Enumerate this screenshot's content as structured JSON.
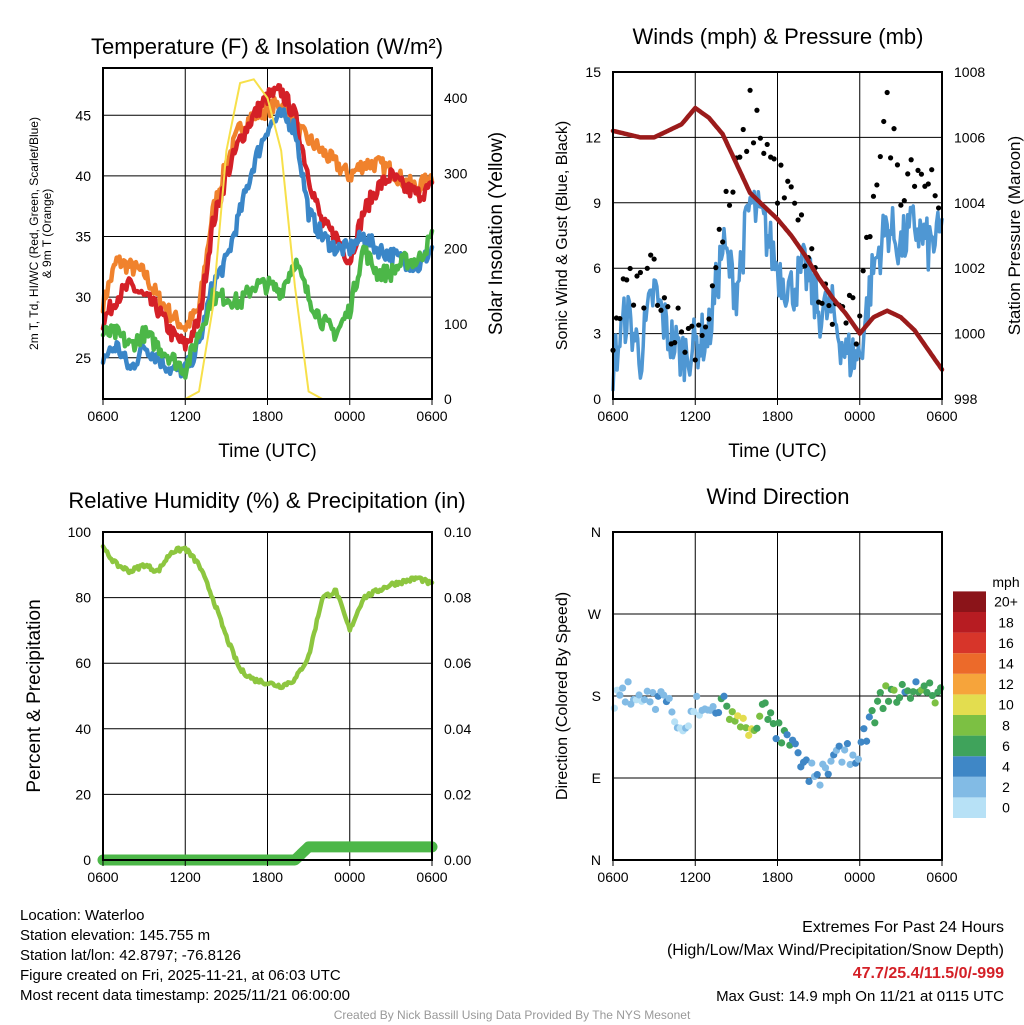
{
  "chart_data": [
    {
      "type": "line",
      "title": "Temperature (F) & Insolation (W/m²)",
      "xlabel": "Time (UTC)",
      "ylabel": "2m T, Td, HI/WC (Red, Green, Scarlet/Blue) & 9m T (Orange)",
      "ylabel2": "Solar Insolation (Yellow)",
      "ylim": [
        21.6,
        48.9
      ],
      "y2lim": [
        0,
        440
      ],
      "yticks": [
        25,
        30,
        35,
        40,
        45
      ],
      "y2ticks": [
        0,
        100,
        200,
        300,
        400
      ],
      "x_hours": [
        6,
        7,
        8,
        9,
        10,
        11,
        12,
        13,
        14,
        15,
        16,
        17,
        18,
        19,
        20,
        21,
        22,
        23,
        24,
        25,
        26,
        27,
        28,
        29,
        30
      ],
      "xticklabels": [
        "0600",
        "1200",
        "1800",
        "0000",
        "0600"
      ],
      "series": [
        {
          "name": "9m T",
          "color": "#f0822d",
          "values": [
            29.5,
            33,
            32.5,
            32,
            30,
            28.5,
            27.5,
            29,
            37,
            41,
            44,
            45,
            45.5,
            46,
            44,
            43,
            42,
            41,
            40,
            41,
            41,
            40.5,
            39.5,
            39,
            40
          ]
        },
        {
          "name": "2m T",
          "color": "#d42027",
          "values": [
            28,
            30,
            31,
            30,
            29,
            27,
            26,
            28,
            36,
            40,
            43,
            45,
            46.5,
            47,
            45,
            40,
            36,
            35,
            33,
            37,
            39,
            40,
            39,
            38.5,
            39
          ]
        },
        {
          "name": "HI/WC",
          "color": "#3a86c8",
          "values": [
            25,
            26,
            24,
            26,
            25,
            24,
            24,
            26,
            31,
            33,
            37,
            41,
            44,
            45,
            44,
            37,
            35,
            34,
            34,
            35,
            34,
            33.5,
            33,
            32.5,
            34
          ]
        },
        {
          "name": "Td",
          "color": "#4cb748",
          "values": [
            27,
            27,
            26,
            27,
            26,
            25,
            24,
            27,
            30,
            30,
            29.5,
            31,
            31,
            30.5,
            33,
            30,
            28,
            27,
            29,
            34,
            32,
            32,
            33,
            33,
            35
          ]
        },
        {
          "name": "Solar",
          "color": "#f7e04a",
          "axis": "right",
          "values": [
            0,
            0,
            0,
            0,
            0,
            0,
            0,
            10,
            120,
            330,
            420,
            425,
            400,
            330,
            150,
            10,
            0,
            0,
            0,
            0,
            0,
            0,
            0,
            0,
            0
          ]
        }
      ]
    },
    {
      "type": "line",
      "title": "Winds (mph) & Pressure (mb)",
      "xlabel": "Time (UTC)",
      "ylabel": "Sonic Wind & Gust (Blue, Black)",
      "ylabel2": "Station Pressure (Maroon)",
      "ylim": [
        0,
        15
      ],
      "y2lim": [
        998,
        1008
      ],
      "yticks": [
        0,
        3,
        6,
        9,
        12,
        15
      ],
      "y2ticks": [
        998,
        1000,
        1002,
        1004,
        1006,
        1008
      ],
      "xticklabels": [
        "0600",
        "1200",
        "1800",
        "0000",
        "0600"
      ],
      "series": [
        {
          "name": "Sonic Wind",
          "color": "#4f97d3",
          "values": [
            1.5,
            4,
            2,
            5,
            3,
            2,
            2.5,
            3,
            7,
            5,
            9,
            8,
            6,
            5,
            6,
            4,
            4,
            2,
            2,
            6,
            8,
            7,
            8,
            7,
            7.5
          ]
        },
        {
          "name": "Gust",
          "color": "#000000",
          "values": [
            3,
            5,
            5,
            6,
            4,
            3,
            3,
            4,
            8,
            10,
            13,
            12,
            10,
            9,
            7,
            5,
            4,
            4,
            3,
            10,
            13,
            10,
            11,
            10,
            10
          ]
        },
        {
          "name": "Pressure",
          "color": "#9b1b1b",
          "axis": "right",
          "values": [
            1006.2,
            1006.1,
            1006,
            1006,
            1006.2,
            1006.4,
            1006.9,
            1006.6,
            1006.1,
            1005.2,
            1004.3,
            1003.9,
            1003.5,
            1003,
            1002.4,
            1001.7,
            1001.1,
            1000.6,
            1000,
            1000.5,
            1000.7,
            1000.5,
            1000.1,
            999.5,
            998.9
          ]
        }
      ]
    },
    {
      "type": "line",
      "title": "Relative Humidity (%) & Precipitation (in)",
      "ylabel": "Percent & Precipitation",
      "ylim": [
        0,
        100
      ],
      "y2lim": [
        0,
        0.1
      ],
      "yticks": [
        0,
        20,
        40,
        60,
        80,
        100
      ],
      "y2ticks": [
        "0.00",
        "0.02",
        "0.04",
        "0.06",
        "0.08",
        "0.10"
      ],
      "xticklabels": [
        "0600",
        "1200",
        "1800",
        "0000",
        "0600"
      ],
      "series": [
        {
          "name": "RH",
          "color": "#8dc63f",
          "values": [
            95,
            90,
            88,
            90,
            88,
            94,
            95,
            90,
            80,
            68,
            58,
            55,
            54,
            53,
            55,
            62,
            80,
            82,
            70,
            80,
            82,
            84,
            85,
            86,
            84
          ]
        },
        {
          "name": "Precipitation",
          "color": "#4cb748",
          "axis": "right",
          "values": [
            0,
            0,
            0,
            0,
            0,
            0,
            0,
            0,
            0,
            0,
            0,
            0,
            0,
            0,
            0,
            0.004,
            0.004,
            0.004,
            0.004,
            0.004,
            0.004,
            0.004,
            0.004,
            0.004,
            0.004
          ]
        }
      ]
    },
    {
      "type": "scatter",
      "title": "Wind Direction",
      "ylabel": "Direction (Colored By Speed)",
      "yticklabels": [
        "N",
        "E",
        "S",
        "W",
        "N"
      ],
      "ylim": [
        0,
        360
      ],
      "xticklabels": [
        "0600",
        "1200",
        "1800",
        "0000",
        "0600"
      ],
      "direction": [
        170,
        185,
        180,
        175,
        180,
        130,
        170,
        160,
        175,
        150,
        145,
        165,
        140,
        125,
        100,
        90,
        110,
        115,
        120,
        160,
        185,
        180,
        190,
        185,
        180
      ],
      "speed": [
        2,
        3,
        2,
        4,
        3,
        1,
        2,
        3,
        6,
        9,
        10,
        7,
        6,
        6,
        5,
        4,
        4,
        3,
        3,
        6,
        8,
        7,
        7,
        7,
        7
      ],
      "colorbar": {
        "title": "mph",
        "labels": [
          "0",
          "2",
          "4",
          "6",
          "8",
          "10",
          "12",
          "14",
          "16",
          "18",
          "20+"
        ],
        "colors": [
          "#b7e1f6",
          "#82bbe5",
          "#3f87c6",
          "#3fa35b",
          "#7cc043",
          "#e3dd4f",
          "#f6a43b",
          "#ec6a2a",
          "#d7352a",
          "#b71c22",
          "#8b1419"
        ]
      }
    }
  ],
  "footer": {
    "location": "Location: Waterloo",
    "elevation": "Station elevation: 145.755 m",
    "latlon": "Station lat/lon: 42.8797; -76.8126",
    "created": "Figure created on Fri, 2025-11-21, at 06:03 UTC",
    "timestamp": "Most recent data timestamp: 2025/11/21 06:00:00",
    "extremes_title": "Extremes For Past 24 Hours",
    "extremes_legend": "(High/Low/Max Wind/Precipitation/Snow Depth)",
    "extremes_values": "47.7/25.4/11.5/0/-999",
    "max_gust": "Max Gust: 14.9 mph On 11/21 at 0115 UTC",
    "credit": "Created By Nick Bassill Using Data Provided By The NYS Mesonet"
  }
}
